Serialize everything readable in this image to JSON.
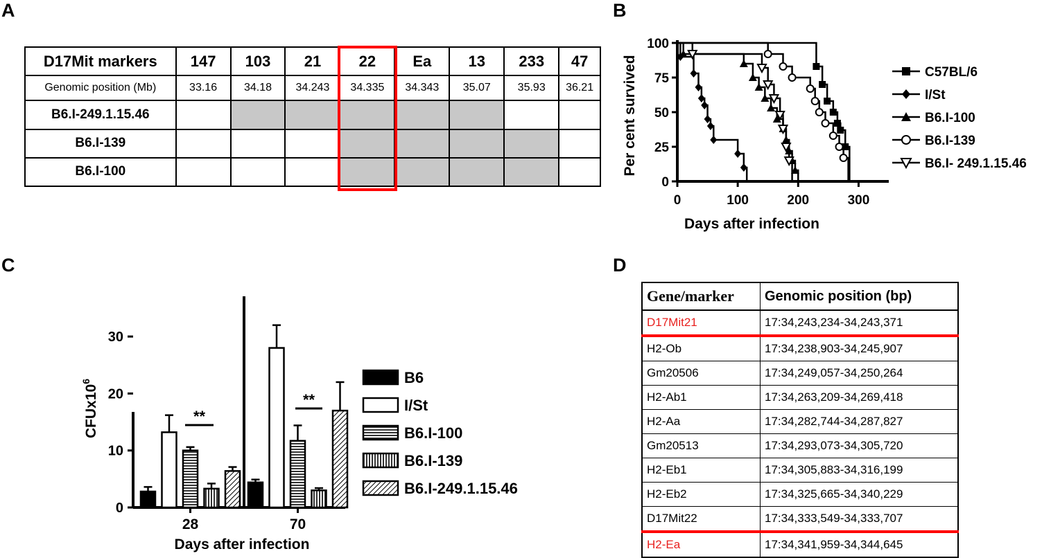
{
  "panels": {
    "a": "A",
    "b": "B",
    "c": "C",
    "d": "D"
  },
  "table_a": {
    "marker_header": "D17Mit markers",
    "position_header": "Genomic position (Mb)",
    "markers": [
      "147",
      "103",
      "21",
      "22",
      "Ea",
      "13",
      "233",
      "47"
    ],
    "positions": [
      "33.16",
      "34.18",
      "34.243",
      "34.335",
      "34.343",
      "35.07",
      "35.93",
      "36.21"
    ],
    "highlighted_marker": "22",
    "strains": [
      {
        "name": "B6.I-249.1.15.46",
        "shaded": [
          false,
          true,
          true,
          true,
          true,
          true,
          false,
          false
        ]
      },
      {
        "name": "B6.I-139",
        "shaded": [
          false,
          false,
          false,
          true,
          true,
          true,
          true,
          false
        ]
      },
      {
        "name": "B6.I-100",
        "shaded": [
          false,
          false,
          false,
          true,
          true,
          true,
          true,
          false
        ]
      }
    ],
    "highlight_color": "#ff0000",
    "shade_color": "#c8c8c8"
  },
  "table_d": {
    "headers": [
      "Gene/marker",
      "Genomic position (bp)"
    ],
    "rows": [
      {
        "gene": "D17Mit21",
        "position": "17:34,243,234-34,243,371",
        "red": true
      },
      {
        "gene": "H2-Ob",
        "position": "17:34,238,903-34,245,907",
        "red": false
      },
      {
        "gene": "Gm20506",
        "position": "17:34,249,057-34,250,264",
        "red": false
      },
      {
        "gene": "H2-Ab1",
        "position": "17:34,263,209-34,269,418",
        "red": false
      },
      {
        "gene": "H2-Aa",
        "position": "17:34,282,744-34,287,827",
        "red": false
      },
      {
        "gene": "Gm20513",
        "position": "17:34,293,073-34,305,720",
        "red": false
      },
      {
        "gene": "H2-Eb1",
        "position": "17:34,305,883-34,316,199",
        "red": false
      },
      {
        "gene": "H2-Eb2",
        "position": "17:34,325,665-34,340,229",
        "red": false
      },
      {
        "gene": "D17Mit22",
        "position": "17:34,333,549-34,333,707",
        "red": false
      },
      {
        "gene": "H2-Ea",
        "position": "17:34,341,959-34,344,645",
        "red": true
      }
    ],
    "red_color": "#e8201e"
  },
  "chart_data": [
    {
      "type": "line",
      "subtype": "survival-step",
      "xlabel": "Days after infection",
      "ylabel": "Per cent survived",
      "xlim": [
        0,
        350
      ],
      "ylim": [
        0,
        100
      ],
      "xticks": [
        0,
        100,
        200,
        300
      ],
      "yticks": [
        0,
        25,
        50,
        75,
        100
      ],
      "legend_position": "right",
      "series": [
        {
          "name": "C57BL/6",
          "marker": "square",
          "points": [
            [
              0,
              100
            ],
            [
              230,
              100
            ],
            [
              230,
              83
            ],
            [
              240,
              83
            ],
            [
              240,
              70
            ],
            [
              248,
              70
            ],
            [
              248,
              58
            ],
            [
              258,
              58
            ],
            [
              258,
              50
            ],
            [
              265,
              50
            ],
            [
              265,
              42
            ],
            [
              270,
              42
            ],
            [
              270,
              37
            ],
            [
              278,
              37
            ],
            [
              278,
              25
            ],
            [
              285,
              25
            ],
            [
              285,
              0
            ]
          ]
        },
        {
          "name": "I/St",
          "marker": "diamond",
          "points": [
            [
              0,
              100
            ],
            [
              5,
              100
            ],
            [
              5,
              90
            ],
            [
              27,
              90
            ],
            [
              27,
              78
            ],
            [
              35,
              78
            ],
            [
              35,
              68
            ],
            [
              40,
              68
            ],
            [
              40,
              60
            ],
            [
              45,
              60
            ],
            [
              45,
              55
            ],
            [
              50,
              55
            ],
            [
              50,
              45
            ],
            [
              55,
              45
            ],
            [
              55,
              40
            ],
            [
              60,
              40
            ],
            [
              60,
              30
            ],
            [
              100,
              30
            ],
            [
              100,
              20
            ],
            [
              110,
              20
            ],
            [
              110,
              10
            ],
            [
              115,
              10
            ],
            [
              115,
              0
            ]
          ]
        },
        {
          "name": "B6.I-100",
          "marker": "triangle-up",
          "points": [
            [
              0,
              100
            ],
            [
              10,
              100
            ],
            [
              10,
              92
            ],
            [
              110,
              92
            ],
            [
              110,
              85
            ],
            [
              125,
              85
            ],
            [
              125,
              75
            ],
            [
              135,
              75
            ],
            [
              135,
              68
            ],
            [
              145,
              68
            ],
            [
              145,
              60
            ],
            [
              155,
              60
            ],
            [
              155,
              53
            ],
            [
              165,
              53
            ],
            [
              165,
              45
            ],
            [
              175,
              45
            ],
            [
              175,
              38
            ],
            [
              180,
              38
            ],
            [
              180,
              30
            ],
            [
              185,
              30
            ],
            [
              185,
              22
            ],
            [
              190,
              22
            ],
            [
              190,
              15
            ],
            [
              195,
              15
            ],
            [
              195,
              8
            ],
            [
              200,
              8
            ],
            [
              200,
              0
            ]
          ]
        },
        {
          "name": "B6.I-139",
          "marker": "circle",
          "points": [
            [
              0,
              100
            ],
            [
              150,
              100
            ],
            [
              150,
              92
            ],
            [
              175,
              92
            ],
            [
              175,
              83
            ],
            [
              190,
              83
            ],
            [
              190,
              75
            ],
            [
              220,
              75
            ],
            [
              220,
              67
            ],
            [
              228,
              67
            ],
            [
              228,
              58
            ],
            [
              235,
              58
            ],
            [
              235,
              50
            ],
            [
              245,
              50
            ],
            [
              245,
              42
            ],
            [
              258,
              42
            ],
            [
              258,
              33
            ],
            [
              268,
              33
            ],
            [
              268,
              25
            ],
            [
              275,
              25
            ],
            [
              275,
              17
            ],
            [
              283,
              17
            ],
            [
              283,
              0
            ],
            [
              290,
              0
            ]
          ]
        },
        {
          "name": "B6.I- 249.1.15.46",
          "marker": "triangle-down",
          "points": [
            [
              0,
              100
            ],
            [
              25,
              100
            ],
            [
              25,
              92
            ],
            [
              140,
              92
            ],
            [
              140,
              82
            ],
            [
              150,
              82
            ],
            [
              150,
              70
            ],
            [
              160,
              70
            ],
            [
              160,
              60
            ],
            [
              170,
              60
            ],
            [
              170,
              48
            ],
            [
              175,
              48
            ],
            [
              175,
              38
            ],
            [
              180,
              38
            ],
            [
              180,
              25
            ],
            [
              185,
              25
            ],
            [
              185,
              15
            ],
            [
              190,
              15
            ],
            [
              190,
              0
            ]
          ]
        }
      ]
    },
    {
      "type": "bar",
      "xlabel": "Days after infection",
      "ylabel": "CFUx10",
      "ylabel_superscript": "6",
      "ylim": [
        0,
        35
      ],
      "yticks": [
        0,
        10,
        20,
        30
      ],
      "categories": [
        "28",
        "70"
      ],
      "legend_position": "right",
      "significance": [
        {
          "category": "28",
          "label": "**"
        },
        {
          "category": "70",
          "label": "**"
        }
      ],
      "series": [
        {
          "name": "B6",
          "values": [
            2.8,
            4.4
          ],
          "errors": [
            0.8,
            0.5
          ],
          "pattern": "solid"
        },
        {
          "name": "I/St",
          "values": [
            13.2,
            28.0
          ],
          "errors": [
            3.0,
            4.0
          ],
          "pattern": "empty"
        },
        {
          "name": "B6.I-100",
          "values": [
            10.0,
            11.7
          ],
          "errors": [
            0.6,
            2.7
          ],
          "pattern": "horizontal"
        },
        {
          "name": "B6.I-139",
          "values": [
            3.3,
            3.0
          ],
          "errors": [
            0.9,
            0.4
          ],
          "pattern": "vertical"
        },
        {
          "name": "B6.I-249.1.15.46",
          "values": [
            6.4,
            17.0
          ],
          "errors": [
            0.7,
            5.0
          ],
          "pattern": "diagonal"
        }
      ]
    }
  ]
}
